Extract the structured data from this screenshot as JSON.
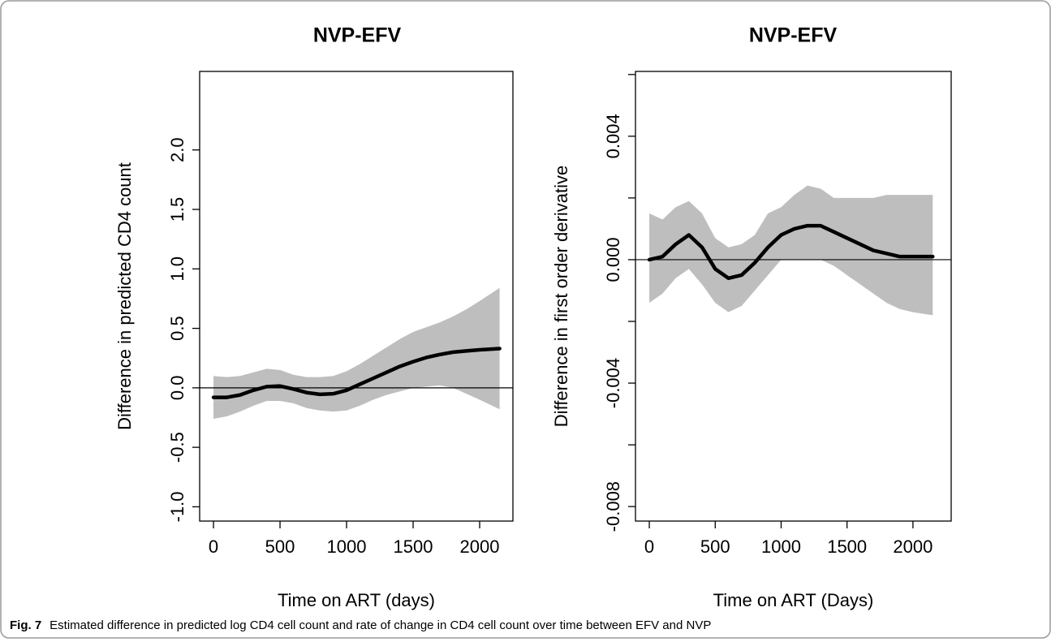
{
  "chart_data": [
    {
      "type": "line",
      "title": "NVP-EFV",
      "x_label": "Time on ART (days)",
      "y_label": "Difference in predicted CD4 count",
      "xlim": [
        -104,
        2250
      ],
      "ylim": [
        -1.12,
        2.66
      ],
      "xticks": [
        0,
        500,
        1000,
        1500,
        2000
      ],
      "yticks": [
        {
          "value": -1,
          "label": "-1.0"
        },
        -0.5,
        {
          "value": 0,
          "label": "0.0"
        },
        0.5,
        {
          "value": 1,
          "label": "1.0"
        },
        1.5,
        {
          "value": 2,
          "label": "2.0"
        }
      ],
      "hline": 0,
      "line_color": "#000000",
      "band_color": "#bebebe",
      "x": [
        0,
        100,
        200,
        300,
        400,
        500,
        600,
        700,
        800,
        900,
        1000,
        1100,
        1200,
        1300,
        1400,
        1500,
        1600,
        1700,
        1800,
        1900,
        2000,
        2150
      ],
      "values": [
        -0.08,
        -0.08,
        -0.06,
        -0.02,
        0.01,
        0.015,
        -0.01,
        -0.04,
        -0.055,
        -0.05,
        -0.02,
        0.03,
        0.08,
        0.13,
        0.18,
        0.22,
        0.255,
        0.28,
        0.3,
        0.31,
        0.32,
        0.33
      ],
      "upper": [
        0.1,
        0.09,
        0.1,
        0.13,
        0.16,
        0.15,
        0.11,
        0.09,
        0.09,
        0.1,
        0.14,
        0.2,
        0.27,
        0.34,
        0.41,
        0.47,
        0.51,
        0.55,
        0.6,
        0.66,
        0.73,
        0.84
      ],
      "lower": [
        -0.26,
        -0.24,
        -0.2,
        -0.15,
        -0.11,
        -0.11,
        -0.13,
        -0.17,
        -0.19,
        -0.2,
        -0.19,
        -0.15,
        -0.1,
        -0.06,
        -0.03,
        0.0,
        0.01,
        0.02,
        0.0,
        -0.05,
        -0.1,
        -0.18
      ]
    },
    {
      "type": "line",
      "title": "NVP-EFV",
      "x_label": "Time on ART (Days)",
      "y_label": "Difference in first order derivative",
      "xlim": [
        -105,
        2290
      ],
      "ylim": [
        -0.00847,
        0.0061
      ],
      "xticks": [
        0,
        500,
        1000,
        1500,
        2000
      ],
      "yticks": [
        -0.008,
        -0.004,
        {
          "value": 0,
          "label": "0.000"
        },
        0.004
      ],
      "yminor_ticks": [
        -0.006,
        -0.002,
        0.002,
        0.006
      ],
      "hline": 0,
      "line_color": "#000000",
      "band_color": "#bebebe",
      "x": [
        0,
        100,
        200,
        300,
        400,
        500,
        600,
        700,
        800,
        900,
        1000,
        1100,
        1200,
        1300,
        1400,
        1500,
        1600,
        1700,
        1800,
        1900,
        2000,
        2150
      ],
      "values": [
        0.0,
        0.0001,
        0.0005,
        0.0008,
        0.0004,
        -0.0003,
        -0.0006,
        -0.0005,
        -0.0001,
        0.0004,
        0.0008,
        0.001,
        0.0011,
        0.0011,
        0.0009,
        0.0007,
        0.0005,
        0.0003,
        0.0002,
        0.0001,
        0.0001,
        0.0001
      ],
      "upper": [
        0.0015,
        0.0013,
        0.0017,
        0.0019,
        0.0015,
        0.0007,
        0.0004,
        0.0005,
        0.0008,
        0.0015,
        0.0017,
        0.0021,
        0.0024,
        0.0023,
        0.002,
        0.002,
        0.002,
        0.002,
        0.0021,
        0.0021,
        0.0021,
        0.0021
      ],
      "lower": [
        -0.0014,
        -0.0011,
        -0.0006,
        -0.0003,
        -0.0008,
        -0.0014,
        -0.0017,
        -0.0015,
        -0.001,
        -0.0005,
        0.0,
        0.0,
        0.0,
        0.0,
        -0.0002,
        -0.0005,
        -0.0008,
        -0.0011,
        -0.0014,
        -0.0016,
        -0.0017,
        -0.0018
      ]
    }
  ],
  "caption": {
    "label": "Fig. 7",
    "text": "Estimated difference in predicted log CD4 cell count and rate of change in CD4 cell count over time between EFV and NVP"
  }
}
